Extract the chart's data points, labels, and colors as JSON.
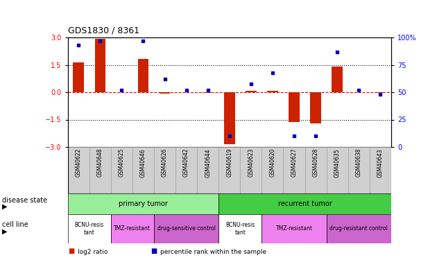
{
  "title": "GDS1830 / 8361",
  "samples": [
    "GSM40622",
    "GSM40648",
    "GSM40625",
    "GSM40646",
    "GSM40626",
    "GSM40642",
    "GSM40644",
    "GSM40619",
    "GSM40623",
    "GSM40620",
    "GSM40627",
    "GSM40628",
    "GSM40635",
    "GSM40638",
    "GSM40643"
  ],
  "log2_ratio": [
    1.65,
    2.95,
    0.02,
    1.85,
    -0.07,
    0.02,
    -0.05,
    -2.85,
    0.1,
    0.1,
    -1.65,
    -1.7,
    1.42,
    0.02,
    -0.05
  ],
  "percentile_rank": [
    93,
    97,
    52,
    97,
    62,
    52,
    52,
    10,
    58,
    68,
    10,
    10,
    87,
    52,
    48
  ],
  "ylim": [
    -3,
    3
  ],
  "y2lim": [
    0,
    100
  ],
  "yticks": [
    -3,
    -1.5,
    0,
    1.5,
    3
  ],
  "y2ticks": [
    0,
    25,
    50,
    75,
    100
  ],
  "hlines_dotted": [
    1.5,
    -1.5
  ],
  "disease_state_groups": [
    {
      "label": "primary tumor",
      "start": 0,
      "end": 7,
      "color": "#99EE99"
    },
    {
      "label": "recurrent tumor",
      "start": 7,
      "end": 15,
      "color": "#44CC44"
    }
  ],
  "cell_line_groups": [
    {
      "label": "BCNU-resis\ntant",
      "start": 0,
      "end": 2,
      "color": "#FFFFFF"
    },
    {
      "label": "TMZ-resistant",
      "start": 2,
      "end": 4,
      "color": "#EE82EE"
    },
    {
      "label": "drug-sensitive control",
      "start": 4,
      "end": 7,
      "color": "#CC66CC"
    },
    {
      "label": "BCNU-resis\ntant",
      "start": 7,
      "end": 9,
      "color": "#FFFFFF"
    },
    {
      "label": "TMZ-resistant",
      "start": 9,
      "end": 12,
      "color": "#EE82EE"
    },
    {
      "label": "drug-resistant control",
      "start": 12,
      "end": 15,
      "color": "#CC66CC"
    }
  ],
  "bar_color": "#CC2200",
  "dot_color": "#0000BB",
  "disease_state_label": "disease state",
  "cell_line_label": "cell line",
  "legend": [
    {
      "label": "log2 ratio",
      "color": "#CC2200"
    },
    {
      "label": "percentile rank within the sample",
      "color": "#0000BB"
    }
  ]
}
